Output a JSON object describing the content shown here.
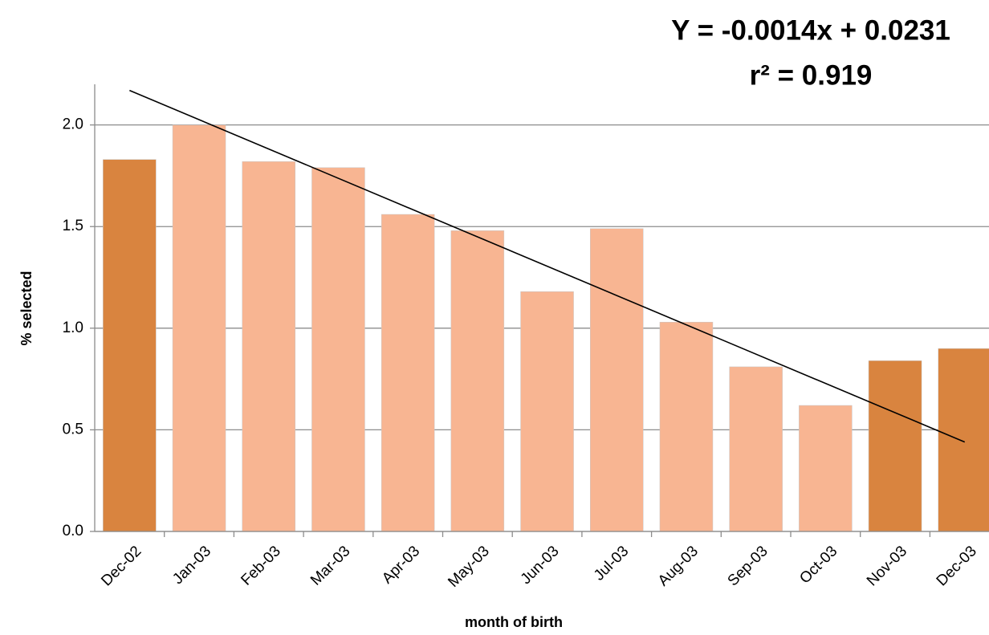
{
  "chart_data": {
    "type": "bar",
    "categories": [
      "Dec-02",
      "Jan-03",
      "Feb-03",
      "Mar-03",
      "Apr-03",
      "May-03",
      "Jun-03",
      "Jul-03",
      "Aug-03",
      "Sep-03",
      "Oct-03",
      "Nov-03",
      "Dec-03"
    ],
    "values": [
      1.83,
      2.0,
      1.82,
      1.79,
      1.56,
      1.48,
      1.18,
      1.49,
      1.03,
      0.81,
      0.62,
      0.84,
      0.9
    ],
    "colors": [
      "#d9843f",
      "#f8b592",
      "#f8b592",
      "#f8b592",
      "#f8b592",
      "#f8b592",
      "#f8b592",
      "#f8b592",
      "#f8b592",
      "#f8b592",
      "#f8b592",
      "#d9843f",
      "#d9843f"
    ],
    "trend_line": {
      "values": [
        2.17,
        0.44
      ],
      "color": "#000000"
    },
    "annotations": [
      "Y = -0.0014x + 0.0231",
      "r² = 0.919"
    ],
    "x_label": "month of birth",
    "y_label": "% selected",
    "ylim": [
      0,
      2.2
    ],
    "yticks": [
      {
        "value": 0,
        "label": "0.0"
      },
      0.5,
      {
        "value": 1,
        "label": "1.0"
      },
      1.5,
      {
        "value": 2,
        "label": "2.0"
      }
    ],
    "grid": true
  }
}
